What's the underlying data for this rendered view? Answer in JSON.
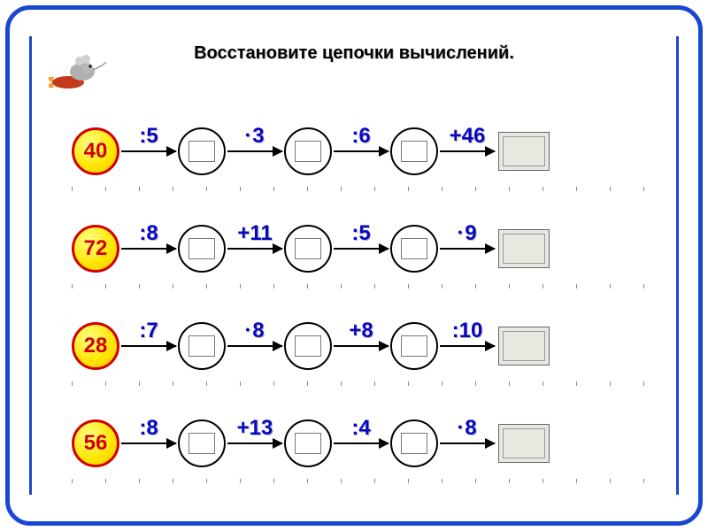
{
  "title": "Восстановите цепочки вычислений.",
  "colors": {
    "frame": "#1947d1",
    "op_text": "#0808c4",
    "start_fill": "#ffe500",
    "start_border": "#d00000",
    "start_text": "#d00000",
    "result_fill": "#e8e8e0"
  },
  "chains": [
    {
      "start": "40",
      "ops": [
        {
          "type": "div",
          "text": ":5"
        },
        {
          "type": "mul",
          "text": "3"
        },
        {
          "type": "div",
          "text": ":6"
        },
        {
          "type": "add",
          "text": "+46"
        }
      ]
    },
    {
      "start": "72",
      "ops": [
        {
          "type": "div",
          "text": ":8"
        },
        {
          "type": "add",
          "text": "+11"
        },
        {
          "type": "div",
          "text": ":5"
        },
        {
          "type": "mul",
          "text": "9"
        }
      ]
    },
    {
      "start": "28",
      "ops": [
        {
          "type": "div",
          "text": ":7"
        },
        {
          "type": "mul",
          "text": "8"
        },
        {
          "type": "add",
          "text": "+8"
        },
        {
          "type": "div",
          "text": ":10"
        }
      ]
    },
    {
      "start": "56",
      "ops": [
        {
          "type": "div",
          "text": ":8"
        },
        {
          "type": "add",
          "text": "+13"
        },
        {
          "type": "div",
          "text": ":4"
        },
        {
          "type": "mul",
          "text": "8"
        }
      ]
    }
  ]
}
